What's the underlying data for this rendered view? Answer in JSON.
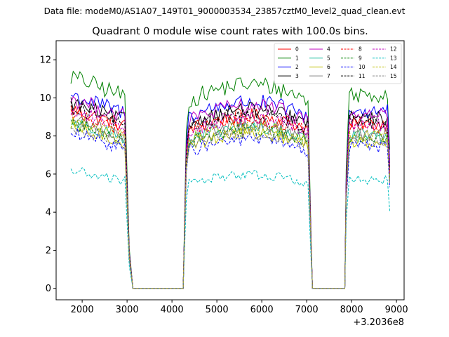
{
  "suptitle": "Data file: modeM0/AS1A07_149T01_9000003534_23857cztM0_level2_quad_clean.evt",
  "chart_data": {
    "type": "line",
    "title": "Quadrant 0 module wise count rates with 100.0s bins.",
    "xlabel": "",
    "ylabel": "",
    "x_offset_label": "+3.2036e8",
    "xlim": [
      1420,
      9170
    ],
    "ylim": [
      -0.6,
      13.0
    ],
    "x_ticks": [
      2000,
      3000,
      4000,
      5000,
      6000,
      7000,
      8000,
      9000
    ],
    "x_tick_labels": [
      "2000",
      "3000",
      "4000",
      "5000",
      "6000",
      "7000",
      "8000",
      "9000"
    ],
    "y_ticks": [
      0,
      2,
      4,
      6,
      8,
      10,
      12
    ],
    "y_tick_labels": [
      "0",
      "2",
      "4",
      "6",
      "8",
      "10",
      "12"
    ],
    "legend": {
      "placement": "top-right",
      "columns": 4
    },
    "segments": [
      [
        1750,
        2950
      ],
      [
        4250,
        7050
      ],
      [
        7850,
        8850
      ]
    ],
    "gaps": [
      [
        2950,
        3130
      ],
      [
        4050,
        4250
      ],
      [
        7050,
        7130
      ],
      [
        7770,
        7850
      ]
    ],
    "gap_value": 0,
    "series": [
      {
        "name": "0",
        "color": "#ff0000",
        "dash": "solid",
        "level": 8.8
      },
      {
        "name": "1",
        "color": "#008000",
        "dash": "solid",
        "level": 10.4
      },
      {
        "name": "2",
        "color": "#0000ff",
        "dash": "solid",
        "level": 9.5
      },
      {
        "name": "3",
        "color": "#000000",
        "dash": "solid",
        "level": 9.1
      },
      {
        "name": "4",
        "color": "#bf00bf",
        "dash": "solid",
        "level": 9.3
      },
      {
        "name": "5",
        "color": "#1fbf9f",
        "dash": "solid",
        "level": 8.2
      },
      {
        "name": "6",
        "color": "#bfbf00",
        "dash": "solid",
        "level": 7.9
      },
      {
        "name": "7",
        "color": "#808080",
        "dash": "solid",
        "level": 8.3
      },
      {
        "name": "8",
        "color": "#ff0000",
        "dash": "dashed",
        "level": 8.6
      },
      {
        "name": "9",
        "color": "#008000",
        "dash": "dashed",
        "level": 8.1
      },
      {
        "name": "10",
        "color": "#0000ff",
        "dash": "dashed",
        "level": 7.6
      },
      {
        "name": "11",
        "color": "#000000",
        "dash": "dashed",
        "level": 8.9
      },
      {
        "name": "12",
        "color": "#bf00bf",
        "dash": "dashed",
        "level": 8.7
      },
      {
        "name": "13",
        "color": "#00bfbf",
        "dash": "dashed",
        "level": 5.8
      },
      {
        "name": "14",
        "color": "#bfbf00",
        "dash": "dashed",
        "level": 8.2
      },
      {
        "name": "15",
        "color": "#808080",
        "dash": "dashed",
        "level": 7.9
      }
    ]
  }
}
